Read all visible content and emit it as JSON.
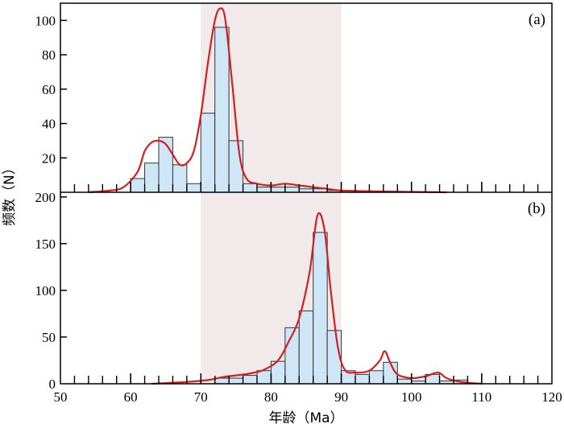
{
  "colors": {
    "bar_fill": "#cfe6f7",
    "bar_stroke": "#333333",
    "curve": "#d02020",
    "highlight": "#f1e9ea",
    "axis": "#000000"
  },
  "chart_data": {
    "type": "bar",
    "xlabel": "年龄（Ma）",
    "ylabel": "频数（N）",
    "xlim": [
      50,
      120
    ],
    "x_ticks": [
      50,
      60,
      70,
      80,
      90,
      100,
      110,
      120
    ],
    "highlight_range": [
      70,
      90
    ],
    "bin_width": 2,
    "panels": [
      {
        "label": "(a)",
        "ylim": [
          0,
          110
        ],
        "y_ticks": [
          20,
          40,
          60,
          80,
          100
        ],
        "bins": [
          {
            "x": 60,
            "value": 8
          },
          {
            "x": 62,
            "value": 17
          },
          {
            "x": 64,
            "value": 32
          },
          {
            "x": 66,
            "value": 16
          },
          {
            "x": 68,
            "value": 5
          },
          {
            "x": 70,
            "value": 46
          },
          {
            "x": 72,
            "value": 96
          },
          {
            "x": 74,
            "value": 30
          },
          {
            "x": 76,
            "value": 5
          },
          {
            "x": 78,
            "value": 3
          },
          {
            "x": 80,
            "value": 3
          },
          {
            "x": 82,
            "value": 3
          },
          {
            "x": 84,
            "value": 2
          },
          {
            "x": 86,
            "value": 2
          },
          {
            "x": 88,
            "value": 1
          }
        ],
        "curve": [
          [
            54,
            0
          ],
          [
            57,
            1
          ],
          [
            59,
            3
          ],
          [
            61,
            12
          ],
          [
            62,
            24
          ],
          [
            63,
            29
          ],
          [
            64,
            30
          ],
          [
            65,
            28
          ],
          [
            66,
            22
          ],
          [
            67,
            16
          ],
          [
            68,
            17
          ],
          [
            69,
            24
          ],
          [
            70,
            45
          ],
          [
            71,
            75
          ],
          [
            72,
            100
          ],
          [
            72.8,
            107
          ],
          [
            73.5,
            100
          ],
          [
            74.5,
            62
          ],
          [
            75.5,
            22
          ],
          [
            76.5,
            8
          ],
          [
            78,
            5
          ],
          [
            80,
            4
          ],
          [
            82,
            5
          ],
          [
            84,
            4
          ],
          [
            86,
            3
          ],
          [
            88,
            2
          ],
          [
            90,
            1
          ],
          [
            95,
            0.5
          ],
          [
            105,
            0
          ]
        ]
      },
      {
        "label": "(b)",
        "ylim": [
          0,
          205
        ],
        "y_ticks": [
          0,
          50,
          100,
          150,
          200
        ],
        "bins": [
          {
            "x": 72,
            "value": 6
          },
          {
            "x": 74,
            "value": 6
          },
          {
            "x": 76,
            "value": 9
          },
          {
            "x": 78,
            "value": 14
          },
          {
            "x": 80,
            "value": 24
          },
          {
            "x": 82,
            "value": 60
          },
          {
            "x": 84,
            "value": 78
          },
          {
            "x": 86,
            "value": 162
          },
          {
            "x": 88,
            "value": 57
          },
          {
            "x": 90,
            "value": 14
          },
          {
            "x": 92,
            "value": 10
          },
          {
            "x": 94,
            "value": 14
          },
          {
            "x": 96,
            "value": 23
          },
          {
            "x": 98,
            "value": 5
          },
          {
            "x": 100,
            "value": 3
          },
          {
            "x": 102,
            "value": 10
          },
          {
            "x": 104,
            "value": 3
          },
          {
            "x": 106,
            "value": 4
          }
        ],
        "curve": [
          [
            63,
            0
          ],
          [
            68,
            2
          ],
          [
            71,
            4
          ],
          [
            73,
            7
          ],
          [
            75,
            9
          ],
          [
            77,
            11
          ],
          [
            79,
            15
          ],
          [
            81,
            25
          ],
          [
            82.5,
            45
          ],
          [
            84,
            70
          ],
          [
            85.5,
            120
          ],
          [
            86.6,
            180
          ],
          [
            87.6,
            165
          ],
          [
            88.5,
            100
          ],
          [
            89.5,
            40
          ],
          [
            90.5,
            15
          ],
          [
            92,
            12
          ],
          [
            94,
            14
          ],
          [
            95.5,
            25
          ],
          [
            96.2,
            35
          ],
          [
            97,
            22
          ],
          [
            98,
            10
          ],
          [
            100,
            6
          ],
          [
            102,
            8
          ],
          [
            103.8,
            12
          ],
          [
            105,
            6
          ],
          [
            107,
            2
          ],
          [
            110,
            0
          ]
        ]
      }
    ]
  }
}
